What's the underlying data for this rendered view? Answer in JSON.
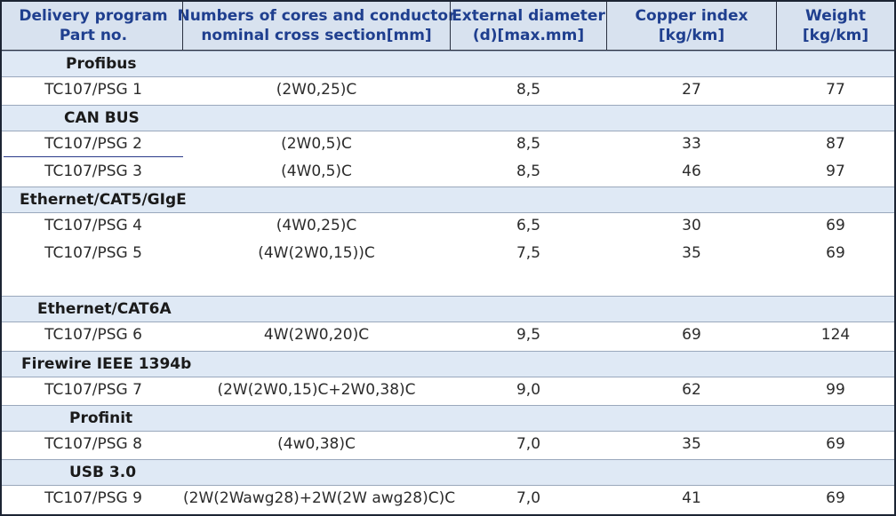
{
  "header": {
    "col1": [
      "Delivery program",
      "Part no."
    ],
    "col2": [
      "Numbers of cores and conductor",
      "nominal cross section[mm]"
    ],
    "col3": [
      "External diameter",
      "(d)[max.mm]"
    ],
    "col4": [
      "Copper index",
      "[kg/km]"
    ],
    "col5": [
      "Weight",
      "[kg/km]"
    ]
  },
  "sections": [
    {
      "title": "Profibus",
      "rows": [
        {
          "part": "TC107/PSG 1",
          "cores": "(2W0,25)C",
          "diameter": "8,5",
          "copper": "27",
          "weight": "77"
        }
      ]
    },
    {
      "title": "CAN BUS",
      "rows": [
        {
          "part": "TC107/PSG 2",
          "cores": "(2W0,5)C",
          "diameter": "8,5",
          "copper": "33",
          "weight": "87"
        },
        {
          "part": "TC107/PSG 3",
          "cores": "(4W0,5)C",
          "diameter": "8,5",
          "copper": "46",
          "weight": "97"
        }
      ]
    },
    {
      "title": "Ethernet/CAT5/GIgE",
      "rows": [
        {
          "part": "TC107/PSG 4",
          "cores": "(4W0,25)C",
          "diameter": "6,5",
          "copper": "30",
          "weight": "69"
        },
        {
          "part": "TC107/PSG 5",
          "cores": "(4W(2W0,15))C",
          "diameter": "7,5",
          "copper": "35",
          "weight": "69"
        }
      ]
    },
    {
      "title": "Ethernet/CAT6A",
      "rows": [
        {
          "part": "TC107/PSG 6",
          "cores": "4W(2W0,20)C",
          "diameter": "9,5",
          "copper": "69",
          "weight": "124"
        }
      ]
    },
    {
      "title": "Firewire IEEE 1394b",
      "rows": [
        {
          "part": "TC107/PSG 7",
          "cores": "(2W(2W0,15)C+2W0,38)C",
          "diameter": "9,0",
          "copper": "62",
          "weight": "99"
        }
      ]
    },
    {
      "title": "Profinit",
      "rows": [
        {
          "part": "TC107/PSG 8",
          "cores": "(4w0,38)C",
          "diameter": "7,0",
          "copper": "35",
          "weight": "69"
        }
      ]
    },
    {
      "title": "USB 3.0",
      "rows": [
        {
          "part": "TC107/PSG 9",
          "cores": "(2W(2Wawg28)+2W(2W awg28)C)C",
          "diameter": "7,0",
          "copper": "41",
          "weight": "69"
        }
      ]
    }
  ]
}
